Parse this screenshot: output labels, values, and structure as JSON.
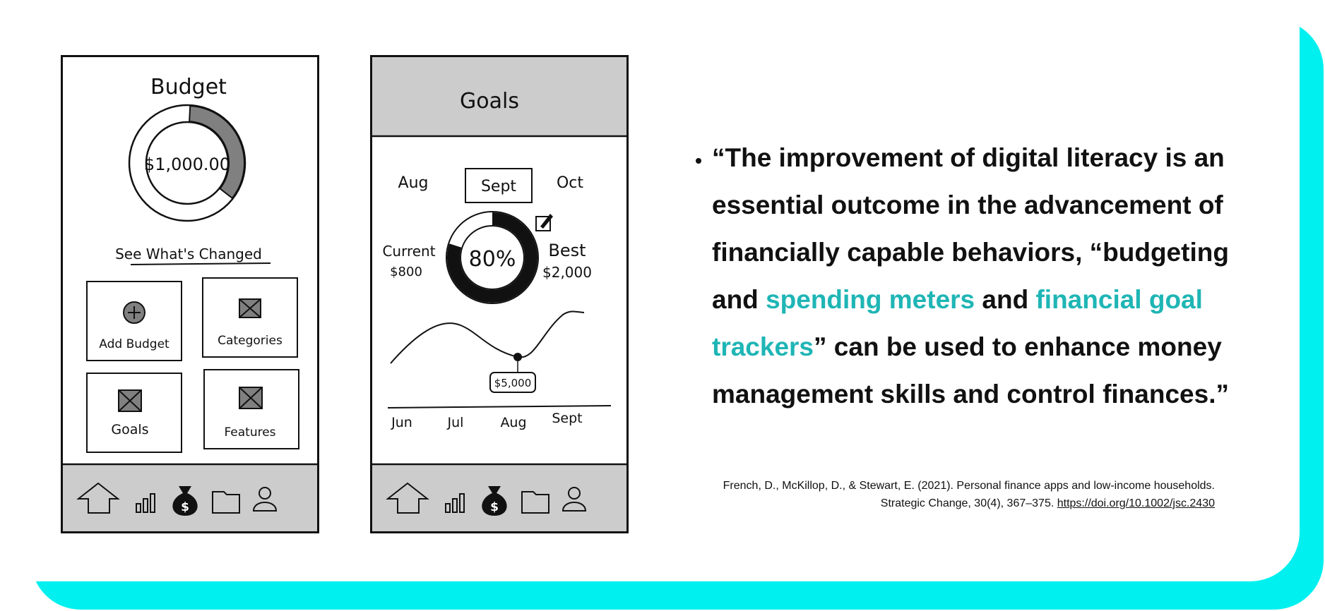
{
  "colors": {
    "accent": "#00f0f0",
    "highlight": "#1fb5b5",
    "nav_bg": "#cccccc",
    "donut_fill": "#808080"
  },
  "phone1": {
    "title": "Budget",
    "amount": "$1,000.00",
    "link": "See What's Changed",
    "tiles": [
      {
        "label": "Add Budget",
        "icon": "plus-circle-icon"
      },
      {
        "label": "Categories",
        "icon": "image-placeholder-icon"
      },
      {
        "label": "Goals",
        "icon": "image-placeholder-icon"
      },
      {
        "label": "Features",
        "icon": "image-placeholder-icon"
      }
    ],
    "nav_icons": [
      "home-icon",
      "bar-chart-icon",
      "money-bag-icon",
      "folder-icon",
      "user-icon"
    ],
    "active_nav": "money-bag-icon"
  },
  "phone2": {
    "title": "Goals",
    "months": [
      "Aug",
      "Sept",
      "Oct"
    ],
    "selected_month": "Sept",
    "current_label": "Current",
    "current_value": "$800",
    "best_label": "Best",
    "best_value": "$2,000",
    "percent": "80%",
    "progress_fraction": 0.8,
    "point_label": "$5,000",
    "axis_labels": [
      "Jun",
      "Jul",
      "Aug",
      "Sept"
    ],
    "nav_icons": [
      "home-icon",
      "bar-chart-icon",
      "money-bag-icon",
      "folder-icon",
      "user-icon"
    ],
    "active_nav": "money-bag-icon"
  },
  "quote": {
    "part1": "“The improvement of digital literacy is an essential outcome in the advancement of financially capable behaviors, “budgeting and ",
    "hl1": "spending meters",
    "part2": " and ",
    "hl2": "financial goal trackers",
    "part3": "” can be used to enhance money management skills and control finances.”"
  },
  "citation": {
    "text": "French, D., McKillop, D., & Stewart, E. (2021). Personal finance apps and low-income households. Strategic Change, 30(4), 367–375.",
    "link": "https://doi.org/10.1002/jsc.2430"
  }
}
